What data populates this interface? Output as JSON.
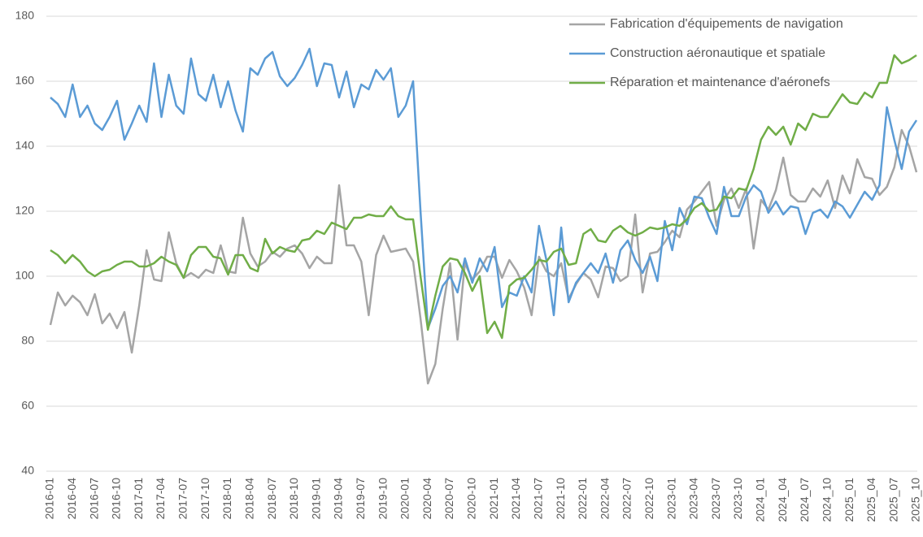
{
  "chart_data": {
    "type": "line",
    "categories": [
      "2016-01",
      null,
      null,
      "2016-04",
      null,
      null,
      "2016-07",
      null,
      null,
      "2016-10",
      null,
      null,
      "2017-01",
      null,
      null,
      "2017-04",
      null,
      null,
      "2017-07",
      null,
      null,
      "2017-10",
      null,
      null,
      "2018-01",
      null,
      null,
      "2018-04",
      null,
      null,
      "2018-07",
      null,
      null,
      "2018-10",
      null,
      null,
      "2019-01",
      null,
      null,
      "2019-04",
      null,
      null,
      "2019-07",
      null,
      null,
      "2019-10",
      null,
      null,
      "2020-01",
      null,
      null,
      "2020-04",
      null,
      null,
      "2020-07",
      null,
      null,
      "2020-10",
      null,
      null,
      "2021-01",
      null,
      null,
      "2021-04",
      null,
      null,
      "2021-07",
      null,
      null,
      "2021-10",
      null,
      null,
      "2022-01",
      null,
      null,
      "2022-04",
      null,
      null,
      "2022-07",
      null,
      null,
      "2022-10",
      null,
      null,
      "2023-01",
      null,
      null,
      "2023-04",
      null,
      null,
      "2023-07",
      null,
      null,
      "2023-10",
      null,
      null,
      "2024_01",
      null,
      null,
      "2024_04",
      null,
      null,
      "2024_07",
      null,
      null,
      "2024_10",
      null,
      null,
      "2025_01",
      null,
      null,
      "2025_04",
      null,
      null,
      "2025_07",
      null,
      null,
      "2025_10"
    ],
    "series": [
      {
        "name": "Fabrication d'équipements de navigation",
        "color": "#a5a5a5",
        "values": [
          85,
          95,
          91,
          94,
          92,
          88,
          94.5,
          85.5,
          88.5,
          84,
          89,
          76.5,
          91,
          108,
          99,
          98.5,
          113.5,
          104,
          99.5,
          101,
          99.5,
          102,
          101,
          109.5,
          101.5,
          101,
          118,
          107,
          103,
          104.5,
          107.5,
          106,
          108.5,
          109.5,
          107,
          102.5,
          106,
          104,
          104,
          128,
          109.5,
          109.5,
          104.5,
          88,
          106.5,
          112.5,
          107.5,
          108,
          108.5,
          104.5,
          87,
          67,
          73,
          90,
          104,
          80.5,
          104,
          99,
          101.5,
          106,
          106,
          99.5,
          105,
          101.5,
          96.5,
          88,
          106,
          101.5,
          100,
          104,
          93,
          97.5,
          101,
          99,
          93.5,
          103,
          102.5,
          98.5,
          100,
          119,
          95,
          107,
          107.5,
          110.5,
          114,
          112,
          120.5,
          123,
          126,
          129,
          115.5,
          123.5,
          127,
          121,
          127,
          108.5,
          123.5,
          120.5,
          126.5,
          136.5,
          125,
          123,
          123,
          127,
          124.5,
          129.5,
          121,
          131,
          125.5,
          136,
          130.5,
          130,
          125,
          127.5,
          133.5,
          145,
          140,
          132
        ]
      },
      {
        "name": "Construction aéronautique et spatiale",
        "color": "#5b9bd5",
        "values": [
          155,
          153,
          149,
          159,
          149,
          152.5,
          147,
          145,
          149,
          154,
          142,
          147,
          152.5,
          147.5,
          165.5,
          149,
          162,
          152.5,
          150,
          167,
          156,
          154,
          162,
          152,
          160,
          151,
          144.5,
          164,
          162,
          167,
          169,
          161.5,
          158.5,
          161,
          165,
          170,
          158.5,
          165.5,
          165,
          155,
          163,
          152,
          159,
          157.5,
          163.5,
          160.5,
          164,
          149,
          152.5,
          160,
          120,
          84,
          90,
          97,
          100,
          95,
          105.5,
          98,
          105.5,
          101.5,
          109,
          90.5,
          95,
          94,
          100,
          95,
          115.5,
          105,
          88,
          115,
          92,
          98,
          101,
          104,
          101,
          107,
          98,
          108,
          111,
          105,
          101,
          106,
          98.5,
          117,
          108,
          121,
          116,
          124.5,
          124,
          118,
          113,
          127.5,
          118.5,
          118.5,
          124.5,
          128,
          126,
          119.5,
          123,
          119,
          121.5,
          121,
          113,
          119.5,
          120.5,
          118,
          123,
          121.5,
          118,
          122,
          126,
          123.5,
          128,
          152,
          142,
          133,
          144.5,
          148
        ]
      },
      {
        "name": "Réparation et maintenance d'aéronefs",
        "color": "#70ad47",
        "values": [
          108,
          106.5,
          104,
          106.5,
          104.5,
          101.5,
          100,
          101.5,
          102,
          103.5,
          104.5,
          104.5,
          103,
          103,
          104,
          106,
          104.5,
          103.5,
          99.5,
          106.5,
          109,
          109,
          106,
          105.5,
          100.5,
          106.5,
          106.5,
          102.5,
          101.5,
          111.5,
          107,
          109,
          108,
          107.5,
          111,
          111.5,
          114,
          113,
          116.5,
          115.5,
          114.5,
          118,
          118,
          119,
          118.5,
          118.5,
          121.5,
          118.5,
          117.5,
          117.5,
          100,
          83.5,
          94,
          103,
          105.5,
          105,
          101,
          95.5,
          100,
          82.5,
          86,
          81,
          97,
          99,
          99.5,
          102,
          105,
          104.5,
          107.5,
          108.5,
          103.5,
          104,
          113,
          114.5,
          111,
          110.5,
          114,
          115.5,
          113.5,
          112.5,
          113.5,
          115,
          114.5,
          115,
          116,
          115.5,
          117.5,
          121,
          122.5,
          120,
          120.5,
          124.5,
          124,
          127,
          126.5,
          133,
          142,
          146,
          143.5,
          146,
          140.5,
          147,
          145,
          150,
          149,
          149,
          152.5,
          156,
          153.5,
          153,
          156.5,
          155,
          159.5,
          159.5,
          168,
          165.5,
          166.5,
          168
        ]
      }
    ],
    "ylim": [
      40,
      180
    ],
    "yticks": [
      40,
      60,
      80,
      100,
      120,
      140,
      160,
      180
    ],
    "grid": true,
    "legend": "upper right"
  }
}
